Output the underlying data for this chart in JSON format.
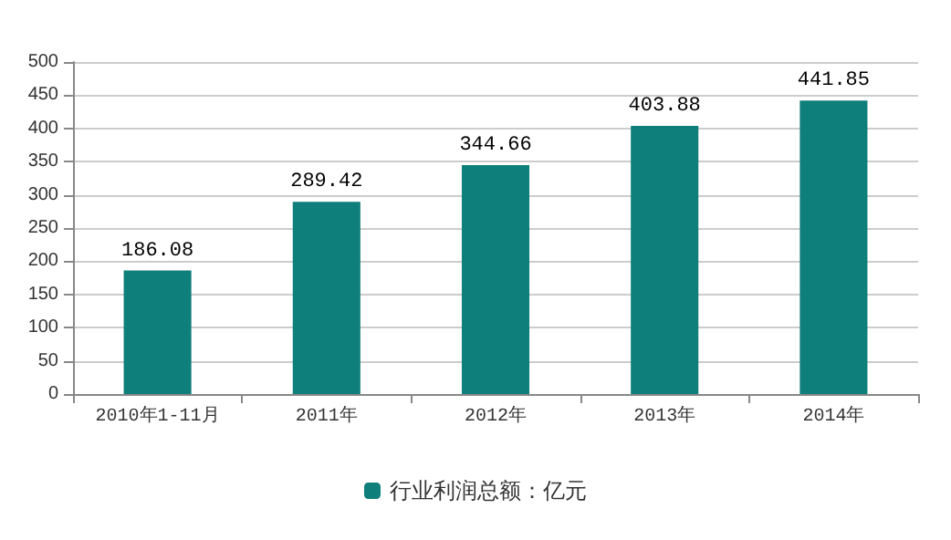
{
  "chart_data": {
    "type": "bar",
    "categories": [
      "2010年1-11月",
      "2011年",
      "2012年",
      "2013年",
      "2014年"
    ],
    "series": [
      {
        "name": "行业利润总额：亿元",
        "color": "#0f7f7b",
        "values": [
          186.08,
          289.42,
          344.66,
          403.88,
          441.85
        ]
      }
    ],
    "ylim": [
      0,
      500
    ],
    "yticks": [
      0,
      50,
      100,
      150,
      200,
      250,
      300,
      350,
      400,
      450,
      500
    ],
    "grid": "y",
    "legend": "bottom",
    "data_labels": true
  }
}
